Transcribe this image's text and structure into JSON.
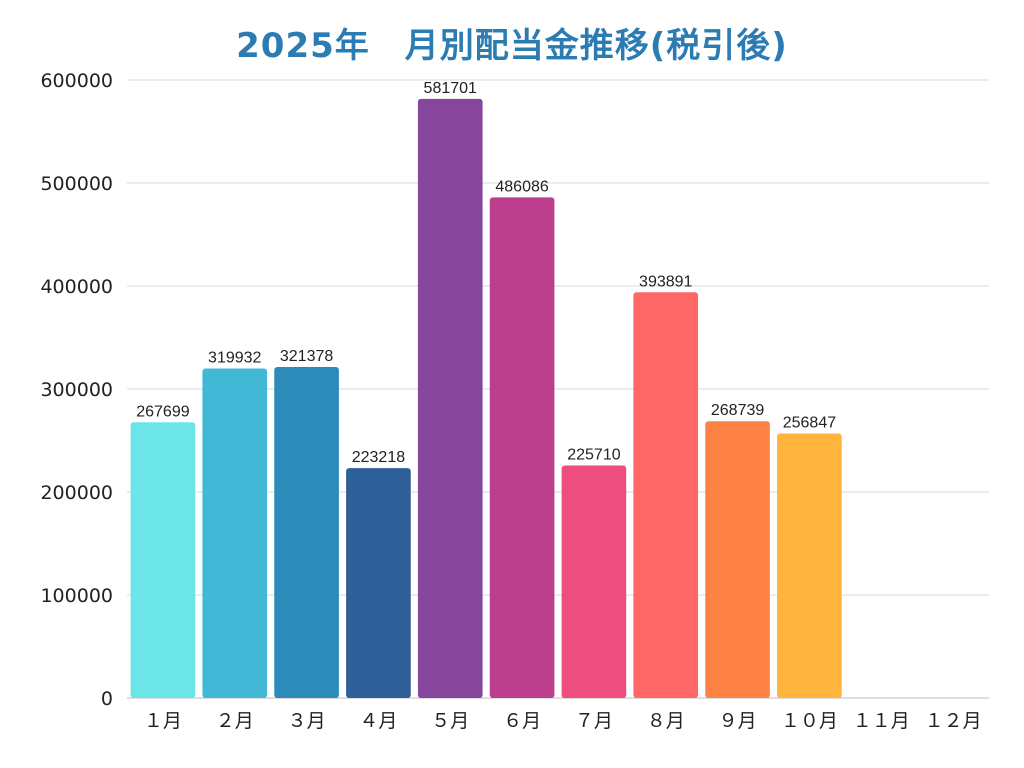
{
  "chart_data": {
    "type": "bar",
    "title": "2025年　月別配当金推移(税引後)",
    "categories": [
      "１月",
      "２月",
      "３月",
      "４月",
      "５月",
      "６月",
      "７月",
      "８月",
      "９月",
      "１０月",
      "１１月",
      "１２月"
    ],
    "values": [
      267699,
      319932,
      321378,
      223218,
      581701,
      486086,
      225710,
      393891,
      268739,
      256847,
      null,
      null
    ],
    "value_labels": [
      "267699",
      "319932",
      "321378",
      "223218",
      "581701",
      "486086",
      "225710",
      "393891",
      "268739",
      "256847",
      "",
      ""
    ],
    "colors": [
      "#6ce5e8",
      "#41b8d5",
      "#2d8bba",
      "#2f5f98",
      "#86469c",
      "#bc3f8d",
      "#ed4d7f",
      "#ff6767",
      "#ff8245",
      "#ffb53d",
      "#cccccc",
      "#cccccc"
    ],
    "ylim": [
      0,
      600000
    ],
    "yticks": [
      0,
      100000,
      200000,
      300000,
      400000,
      500000,
      600000
    ],
    "ytick_labels": [
      "0",
      "100000",
      "200000",
      "300000",
      "400000",
      "500000",
      "600000"
    ],
    "xlabel": "",
    "ylabel": "",
    "grid": true,
    "legend": "none"
  }
}
